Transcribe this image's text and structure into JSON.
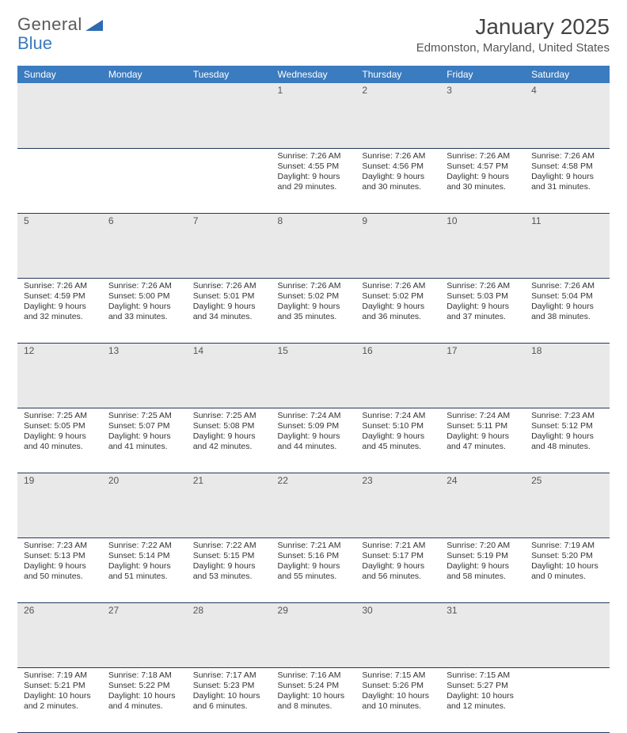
{
  "brand": {
    "word1": "General",
    "word2": "Blue"
  },
  "title": "January 2025",
  "location": "Edmonston, Maryland, United States",
  "colors": {
    "header_bg": "#3b7bbf",
    "header_text": "#ffffff",
    "daynum_bg": "#e9e9e9",
    "row_border": "#23395d",
    "text": "#333333",
    "brand_gray": "#5a5a5a",
    "brand_blue": "#3b7bbf"
  },
  "day_headers": [
    "Sunday",
    "Monday",
    "Tuesday",
    "Wednesday",
    "Thursday",
    "Friday",
    "Saturday"
  ],
  "weeks": [
    [
      null,
      null,
      null,
      {
        "n": "1",
        "sr": "7:26 AM",
        "ss": "4:55 PM",
        "dl": "9 hours and 29 minutes."
      },
      {
        "n": "2",
        "sr": "7:26 AM",
        "ss": "4:56 PM",
        "dl": "9 hours and 30 minutes."
      },
      {
        "n": "3",
        "sr": "7:26 AM",
        "ss": "4:57 PM",
        "dl": "9 hours and 30 minutes."
      },
      {
        "n": "4",
        "sr": "7:26 AM",
        "ss": "4:58 PM",
        "dl": "9 hours and 31 minutes."
      }
    ],
    [
      {
        "n": "5",
        "sr": "7:26 AM",
        "ss": "4:59 PM",
        "dl": "9 hours and 32 minutes."
      },
      {
        "n": "6",
        "sr": "7:26 AM",
        "ss": "5:00 PM",
        "dl": "9 hours and 33 minutes."
      },
      {
        "n": "7",
        "sr": "7:26 AM",
        "ss": "5:01 PM",
        "dl": "9 hours and 34 minutes."
      },
      {
        "n": "8",
        "sr": "7:26 AM",
        "ss": "5:02 PM",
        "dl": "9 hours and 35 minutes."
      },
      {
        "n": "9",
        "sr": "7:26 AM",
        "ss": "5:02 PM",
        "dl": "9 hours and 36 minutes."
      },
      {
        "n": "10",
        "sr": "7:26 AM",
        "ss": "5:03 PM",
        "dl": "9 hours and 37 minutes."
      },
      {
        "n": "11",
        "sr": "7:26 AM",
        "ss": "5:04 PM",
        "dl": "9 hours and 38 minutes."
      }
    ],
    [
      {
        "n": "12",
        "sr": "7:25 AM",
        "ss": "5:05 PM",
        "dl": "9 hours and 40 minutes."
      },
      {
        "n": "13",
        "sr": "7:25 AM",
        "ss": "5:07 PM",
        "dl": "9 hours and 41 minutes."
      },
      {
        "n": "14",
        "sr": "7:25 AM",
        "ss": "5:08 PM",
        "dl": "9 hours and 42 minutes."
      },
      {
        "n": "15",
        "sr": "7:24 AM",
        "ss": "5:09 PM",
        "dl": "9 hours and 44 minutes."
      },
      {
        "n": "16",
        "sr": "7:24 AM",
        "ss": "5:10 PM",
        "dl": "9 hours and 45 minutes."
      },
      {
        "n": "17",
        "sr": "7:24 AM",
        "ss": "5:11 PM",
        "dl": "9 hours and 47 minutes."
      },
      {
        "n": "18",
        "sr": "7:23 AM",
        "ss": "5:12 PM",
        "dl": "9 hours and 48 minutes."
      }
    ],
    [
      {
        "n": "19",
        "sr": "7:23 AM",
        "ss": "5:13 PM",
        "dl": "9 hours and 50 minutes."
      },
      {
        "n": "20",
        "sr": "7:22 AM",
        "ss": "5:14 PM",
        "dl": "9 hours and 51 minutes."
      },
      {
        "n": "21",
        "sr": "7:22 AM",
        "ss": "5:15 PM",
        "dl": "9 hours and 53 minutes."
      },
      {
        "n": "22",
        "sr": "7:21 AM",
        "ss": "5:16 PM",
        "dl": "9 hours and 55 minutes."
      },
      {
        "n": "23",
        "sr": "7:21 AM",
        "ss": "5:17 PM",
        "dl": "9 hours and 56 minutes."
      },
      {
        "n": "24",
        "sr": "7:20 AM",
        "ss": "5:19 PM",
        "dl": "9 hours and 58 minutes."
      },
      {
        "n": "25",
        "sr": "7:19 AM",
        "ss": "5:20 PM",
        "dl": "10 hours and 0 minutes."
      }
    ],
    [
      {
        "n": "26",
        "sr": "7:19 AM",
        "ss": "5:21 PM",
        "dl": "10 hours and 2 minutes."
      },
      {
        "n": "27",
        "sr": "7:18 AM",
        "ss": "5:22 PM",
        "dl": "10 hours and 4 minutes."
      },
      {
        "n": "28",
        "sr": "7:17 AM",
        "ss": "5:23 PM",
        "dl": "10 hours and 6 minutes."
      },
      {
        "n": "29",
        "sr": "7:16 AM",
        "ss": "5:24 PM",
        "dl": "10 hours and 8 minutes."
      },
      {
        "n": "30",
        "sr": "7:15 AM",
        "ss": "5:26 PM",
        "dl": "10 hours and 10 minutes."
      },
      {
        "n": "31",
        "sr": "7:15 AM",
        "ss": "5:27 PM",
        "dl": "10 hours and 12 minutes."
      },
      null
    ]
  ],
  "labels": {
    "sunrise": "Sunrise:",
    "sunset": "Sunset:",
    "daylight": "Daylight:"
  }
}
